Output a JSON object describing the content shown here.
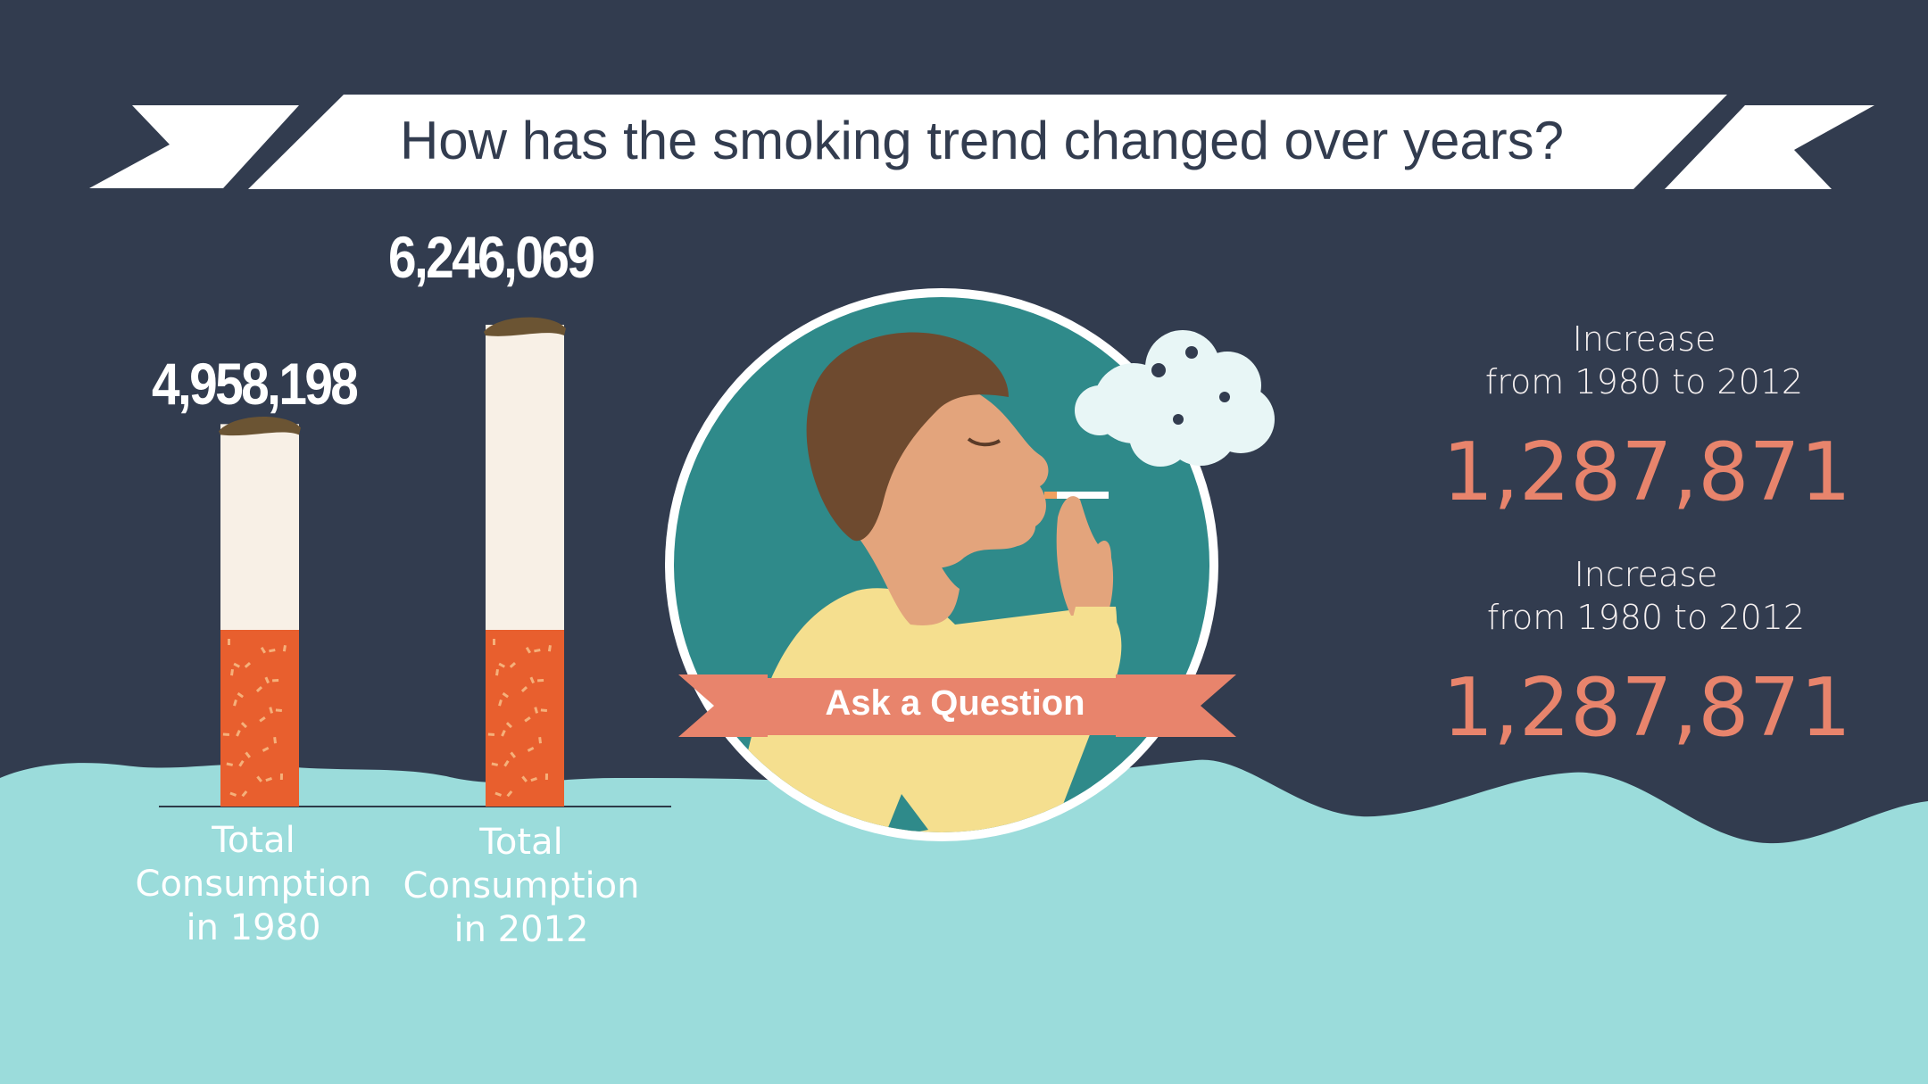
{
  "title": "How has the smoking trend changed over years?",
  "cta_label": "Ask a Question",
  "colors": {
    "background": "#323c4f",
    "water": "#9bdcdb",
    "accent": "#e8846c",
    "tobacco": "#e85f2e",
    "paper": "#f8f0e6",
    "ash": "#6b5433",
    "banner": "#ffffff",
    "circle": "#2f8a8a"
  },
  "chart_data": {
    "type": "bar",
    "title": "How has the smoking trend changed over years?",
    "categories": [
      "Total\nConsumption\nin 1980",
      "Total\nConsumption\nin 2012"
    ],
    "values": [
      4958198,
      6246069
    ],
    "value_labels": [
      "4,958,198",
      "6,246,069"
    ],
    "mark_style": "cigarette"
  },
  "bars": [
    {
      "category_lines": [
        "Total",
        "Consumption",
        "in 1980"
      ],
      "value_label": "4,958,198"
    },
    {
      "category_lines": [
        "Total",
        "Consumption",
        "in 2012"
      ],
      "value_label": "6,246,069"
    }
  ],
  "stats": [
    {
      "label_line1": "Increase",
      "label_line2": "from 1980 to 2012",
      "value": "1,287,871"
    },
    {
      "label_line1": "Increase",
      "label_line2": "from 1980 to 2012",
      "value": "1,287,871"
    }
  ]
}
